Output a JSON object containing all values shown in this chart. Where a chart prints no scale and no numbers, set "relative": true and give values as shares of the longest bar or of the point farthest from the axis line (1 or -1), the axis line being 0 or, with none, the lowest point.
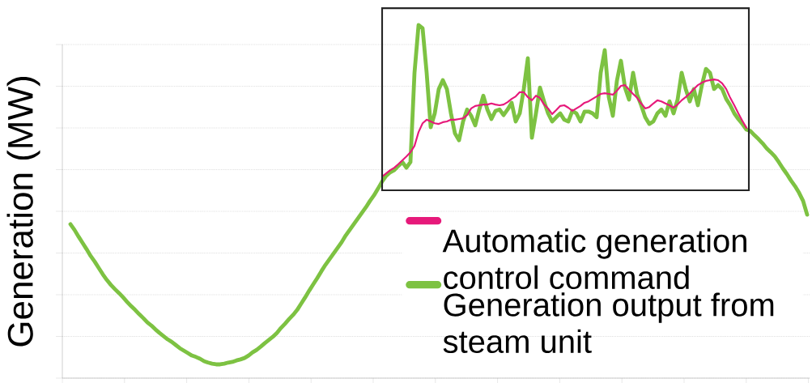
{
  "chart_data": {
    "type": "line",
    "ylabel": "Generation (MW)",
    "relative": true,
    "grid": "y",
    "legend": "bottom right",
    "marker": "none",
    "line_style": "solid",
    "categories": [
      null,
      null,
      null,
      null,
      null,
      null,
      null,
      null,
      null,
      null,
      null,
      null,
      null,
      null,
      null,
      null,
      null,
      null,
      null,
      null,
      null,
      null,
      null,
      null,
      null,
      null,
      null,
      null,
      null,
      null,
      null,
      null,
      null,
      null,
      null,
      null,
      null,
      null,
      null,
      null,
      null,
      null,
      null,
      null,
      null,
      null,
      null,
      null,
      null,
      null,
      null,
      null,
      null,
      null,
      null,
      null,
      null,
      null,
      null,
      null,
      null,
      null,
      null,
      null,
      null,
      null,
      null,
      null,
      null,
      null,
      null,
      null,
      null,
      null,
      null,
      null,
      null,
      null,
      null,
      null,
      null,
      null,
      null,
      null,
      null,
      null,
      null,
      null,
      null,
      null,
      null,
      null,
      null,
      null,
      null,
      null,
      null,
      null,
      null,
      null,
      null,
      null,
      null,
      null,
      null,
      null,
      null,
      null,
      null,
      null,
      null,
      null,
      null,
      null,
      null,
      null,
      null,
      null,
      null,
      null,
      null,
      null,
      null,
      null,
      null,
      null,
      null,
      null,
      null,
      null,
      null,
      null,
      null,
      null,
      null,
      null,
      null,
      null,
      null,
      null,
      null,
      null,
      null,
      null,
      null,
      null,
      null,
      null,
      null,
      null,
      null,
      null,
      null,
      null,
      null,
      null,
      null,
      null,
      null,
      null,
      null,
      null,
      null,
      null,
      null,
      null,
      null,
      null,
      null,
      null,
      null,
      null,
      null,
      null,
      null,
      null,
      null,
      null,
      null,
      null,
      null,
      null,
      null
    ],
    "series": [
      {
        "name": "Automatic generation control command",
        "color": "#e6197a",
        "values": [
          null,
          null,
          null,
          null,
          null,
          null,
          null,
          null,
          null,
          null,
          null,
          null,
          null,
          null,
          null,
          null,
          null,
          null,
          null,
          null,
          null,
          null,
          null,
          null,
          null,
          null,
          null,
          null,
          null,
          null,
          null,
          null,
          null,
          null,
          null,
          null,
          null,
          null,
          null,
          null,
          null,
          null,
          null,
          null,
          null,
          null,
          null,
          null,
          null,
          null,
          null,
          null,
          null,
          null,
          null,
          null,
          null,
          null,
          null,
          null,
          null,
          null,
          null,
          null,
          null,
          null,
          null,
          null,
          null,
          null,
          null,
          null,
          null,
          null,
          null,
          null,
          null,
          0.571,
          0.58,
          0.589,
          0.596,
          0.606,
          0.617,
          0.628,
          0.64,
          0.658,
          0.697,
          0.722,
          0.732,
          0.727,
          0.722,
          0.72,
          0.725,
          0.727,
          0.732,
          0.732,
          0.734,
          0.736,
          0.745,
          0.764,
          0.771,
          0.773,
          0.775,
          0.775,
          0.778,
          0.775,
          0.773,
          0.775,
          0.782,
          0.791,
          0.798,
          0.81,
          0.81,
          0.796,
          0.787,
          0.8,
          0.794,
          0.775,
          0.764,
          0.748,
          0.759,
          0.771,
          0.773,
          0.766,
          0.757,
          0.764,
          0.771,
          0.78,
          0.784,
          0.791,
          0.798,
          0.805,
          0.807,
          0.805,
          0.803,
          0.814,
          0.828,
          0.83,
          0.817,
          0.805,
          0.794,
          0.778,
          0.764,
          0.768,
          0.778,
          0.787,
          0.784,
          0.778,
          0.773,
          0.766,
          0.775,
          0.787,
          0.796,
          0.807,
          0.819,
          0.83,
          0.837,
          0.842,
          0.844,
          0.846,
          0.844,
          0.835,
          0.819,
          0.794,
          0.773,
          0.75,
          0.729,
          0.709,
          null,
          null,
          null,
          null,
          null,
          null,
          null,
          null,
          null,
          null,
          null,
          null,
          null,
          null,
          null
        ]
      },
      {
        "name": "Generation output from steam unit",
        "color": "#7dc242",
        "values": [
          0.436,
          0.42,
          0.401,
          0.383,
          0.365,
          0.346,
          0.33,
          0.312,
          0.294,
          0.278,
          0.264,
          0.252,
          0.241,
          0.229,
          0.216,
          0.204,
          0.193,
          0.181,
          0.17,
          0.158,
          0.149,
          0.138,
          0.128,
          0.119,
          0.11,
          0.103,
          0.094,
          0.085,
          0.078,
          0.071,
          0.064,
          0.06,
          0.055,
          0.048,
          0.044,
          0.041,
          0.039,
          0.039,
          0.041,
          0.044,
          0.046,
          0.05,
          0.053,
          0.057,
          0.064,
          0.073,
          0.08,
          0.089,
          0.099,
          0.108,
          0.117,
          0.128,
          0.142,
          0.154,
          0.167,
          0.179,
          0.193,
          0.211,
          0.229,
          0.248,
          0.266,
          0.284,
          0.303,
          0.321,
          0.337,
          0.353,
          0.369,
          0.385,
          0.404,
          0.42,
          0.436,
          0.452,
          0.468,
          0.484,
          0.502,
          0.518,
          0.537,
          0.557,
          0.573,
          0.583,
          0.589,
          0.601,
          0.612,
          0.596,
          0.612,
          0.865,
          1.0,
          0.991,
          0.865,
          0.711,
          0.75,
          0.819,
          0.844,
          0.819,
          0.75,
          0.693,
          0.674,
          0.727,
          0.761,
          0.743,
          0.716,
          0.761,
          0.8,
          0.761,
          0.734,
          0.757,
          0.761,
          0.745,
          0.761,
          0.78,
          0.727,
          0.75,
          0.819,
          0.906,
          0.681,
          0.75,
          0.823,
          0.784,
          0.75,
          0.727,
          0.739,
          0.75,
          0.732,
          0.727,
          0.757,
          0.75,
          0.727,
          0.755,
          0.755,
          0.75,
          0.739,
          0.865,
          0.929,
          0.796,
          0.743,
          0.842,
          0.899,
          0.823,
          0.789,
          0.865,
          0.803,
          0.773,
          0.739,
          0.72,
          0.727,
          0.75,
          0.761,
          0.743,
          0.784,
          0.75,
          0.789,
          0.865,
          0.819,
          0.784,
          0.819,
          0.773,
          0.83,
          0.876,
          0.865,
          0.819,
          0.83,
          0.819,
          0.791,
          0.773,
          0.75,
          0.734,
          0.72,
          0.704,
          0.7,
          0.688,
          0.677,
          0.665,
          0.651,
          0.64,
          0.628,
          0.612,
          0.594,
          0.578,
          0.56,
          0.544,
          0.525,
          0.502,
          0.463
        ]
      }
    ]
  }
}
